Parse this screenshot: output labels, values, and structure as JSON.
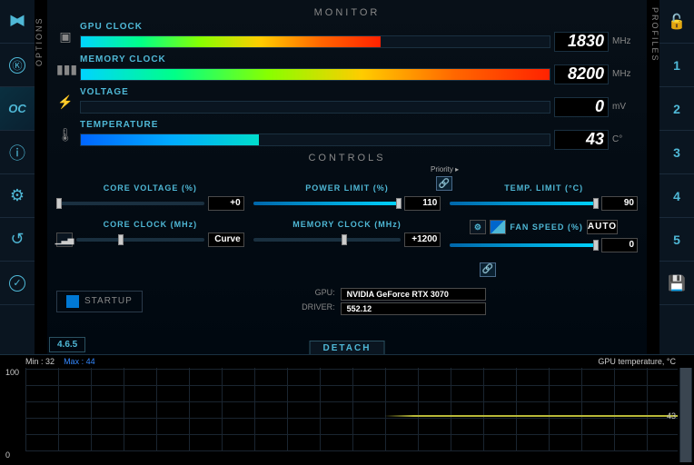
{
  "sidebar_left": {
    "label": "OPTIONS",
    "items": [
      {
        "name": "logo-icon",
        "glyph": "⚡",
        "active": false,
        "color": "#4fb8d6"
      },
      {
        "name": "k-icon",
        "glyph": "Ⓚ",
        "active": false,
        "color": "#4fb8d6"
      },
      {
        "name": "oc-icon",
        "glyph": "OC",
        "active": true,
        "color": "#4fb8d6"
      },
      {
        "name": "info-icon",
        "glyph": "ⓘ",
        "active": false,
        "color": "#4fb8d6"
      },
      {
        "name": "gear-icon",
        "glyph": "⚙",
        "active": false,
        "color": "#4fb8d6"
      },
      {
        "name": "reset-icon",
        "glyph": "↺",
        "active": false,
        "color": "#4fb8d6"
      },
      {
        "name": "apply-icon",
        "glyph": "✓",
        "active": false,
        "color": "#4fb8d6"
      }
    ]
  },
  "sidebar_right": {
    "label": "PROFILES",
    "items": [
      {
        "name": "lock-icon",
        "glyph": "🔓"
      },
      {
        "name": "profile-1",
        "glyph": "1"
      },
      {
        "name": "profile-2",
        "glyph": "2"
      },
      {
        "name": "profile-3",
        "glyph": "3"
      },
      {
        "name": "profile-4",
        "glyph": "4"
      },
      {
        "name": "profile-5",
        "glyph": "5"
      },
      {
        "name": "save-icon",
        "glyph": "💾"
      }
    ]
  },
  "monitor": {
    "title": "MONITOR",
    "rows": [
      {
        "label": "GPU CLOCK",
        "icon": "▣",
        "value": "1830",
        "unit": "MHz",
        "fill_pct": 64,
        "fill_class": "rainbow"
      },
      {
        "label": "MEMORY CLOCK",
        "icon": "▮▮▮",
        "value": "8200",
        "unit": "MHz",
        "fill_pct": 100,
        "fill_class": "rainbow"
      },
      {
        "label": "VOLTAGE",
        "icon": "⚡",
        "value": "0",
        "unit": "mV",
        "fill_pct": 0,
        "fill_style": "background:#0088cc"
      },
      {
        "label": "TEMPERATURE",
        "icon": "🌡",
        "value": "43",
        "unit": "C°",
        "fill_pct": 38,
        "fill_style": "background:linear-gradient(90deg,#0066ff,#00aaff,#00ddcc)"
      }
    ]
  },
  "controls": {
    "title": "CONTROLS",
    "priority_label": "Priority ▸",
    "core_voltage": {
      "label": "CORE VOLTAGE (%)",
      "value": "+0",
      "fill_pct": 0,
      "thumb_pct": 0
    },
    "power_limit": {
      "label": "POWER LIMIT (%)",
      "value": "110",
      "fill_pct": 100,
      "thumb_pct": 97
    },
    "temp_limit": {
      "label": "TEMP. LIMIT (°C)",
      "value": "90",
      "fill_pct": 100,
      "thumb_pct": 97
    },
    "core_clock": {
      "label": "CORE CLOCK (MHz)",
      "value": "Curve",
      "fill_pct": 0,
      "thumb_pct": 33,
      "icon": "📊"
    },
    "memory_clock": {
      "label": "MEMORY CLOCK (MHz)",
      "value": "+1200",
      "fill_pct": 0,
      "thumb_pct": 60
    },
    "fan_speed": {
      "label": "FAN SPEED (%)",
      "value": "0",
      "auto_label": "AUTO",
      "fill_pct": 100,
      "thumb_pct": 97,
      "icon": "◢"
    }
  },
  "footer": {
    "startup_label": "STARTUP",
    "gpu_label": "GPU:",
    "gpu_value": "NVIDIA GeForce RTX 3070",
    "driver_label": "DRIVER:",
    "driver_value": "552.12",
    "detach_label": "DETACH",
    "version": "4.6.5"
  },
  "graph": {
    "min_label": "Min :",
    "min_value": "32",
    "max_label": "Max :",
    "max_value": "44",
    "title": "GPU temperature, °C",
    "y_max": "100",
    "y_min": "0",
    "current": "43"
  },
  "colors": {
    "accent": "#4fb8d6",
    "bg": "#000810",
    "panel": "#0a1520"
  }
}
